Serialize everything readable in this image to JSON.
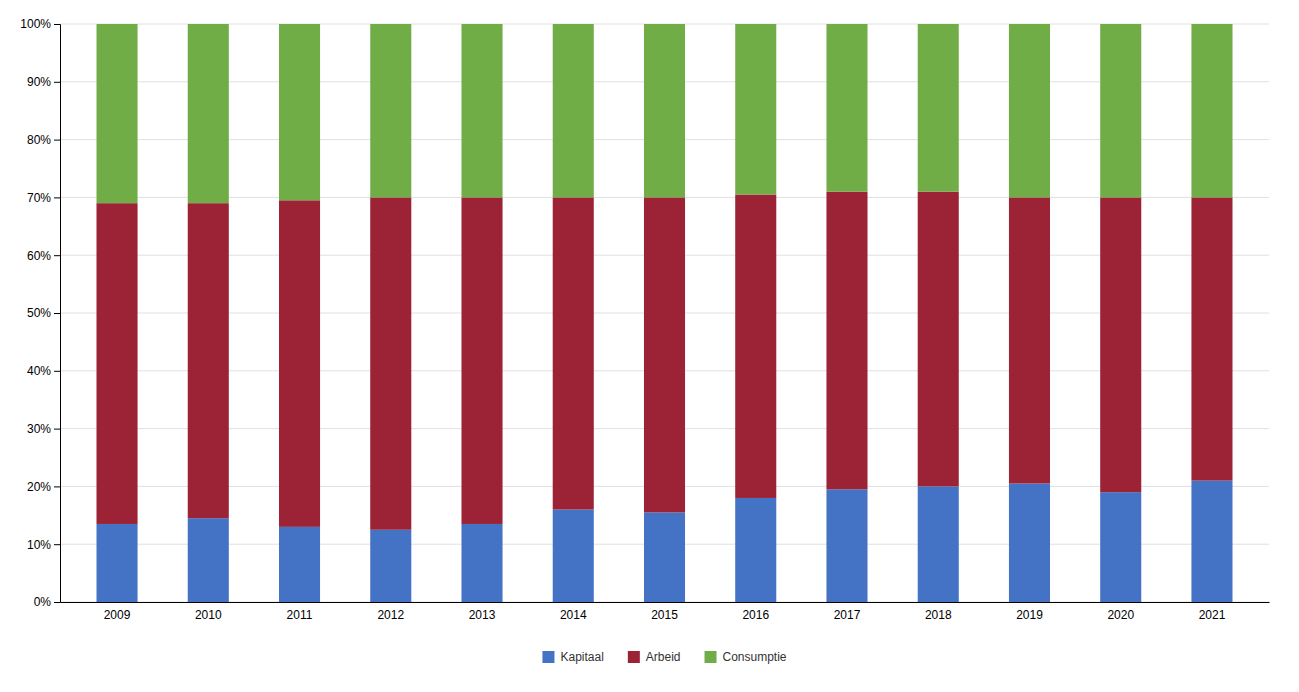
{
  "chart_data": {
    "type": "bar",
    "stacked": true,
    "categories": [
      "2009",
      "2010",
      "2011",
      "2012",
      "2013",
      "2014",
      "2015",
      "2016",
      "2017",
      "2018",
      "2019",
      "2020",
      "2021"
    ],
    "series": [
      {
        "name": "Kapitaal",
        "color": "#4472C4",
        "values": [
          13.5,
          14.5,
          13.0,
          12.5,
          13.5,
          16.0,
          15.5,
          18.0,
          19.5,
          20.0,
          20.5,
          19.0,
          21.0
        ]
      },
      {
        "name": "Arbeid",
        "color": "#9B2335",
        "values": [
          55.5,
          54.5,
          56.5,
          57.5,
          56.5,
          54.0,
          54.5,
          52.5,
          51.5,
          51.0,
          49.5,
          51.0,
          49.0
        ]
      },
      {
        "name": "Consumptie",
        "color": "#70AD47",
        "values": [
          31.0,
          31.0,
          30.5,
          30.0,
          30.0,
          30.0,
          30.0,
          29.5,
          29.0,
          29.0,
          30.0,
          30.0,
          30.0
        ]
      }
    ],
    "ylim": [
      0,
      100
    ],
    "yticks": [
      {
        "value": 0,
        "label": "0%"
      },
      {
        "value": 10,
        "label": "10%"
      },
      {
        "value": 20,
        "label": "20%"
      },
      {
        "value": 30,
        "label": "30%"
      },
      {
        "value": 40,
        "label": "40%"
      },
      {
        "value": 50,
        "label": "50%"
      },
      {
        "value": 60,
        "label": "60%"
      },
      {
        "value": 70,
        "label": "70%"
      },
      {
        "value": 80,
        "label": "80%"
      },
      {
        "value": 90,
        "label": "90%"
      },
      {
        "value": 100,
        "label": "100%"
      }
    ],
    "grid": true,
    "legend": "bottom"
  }
}
